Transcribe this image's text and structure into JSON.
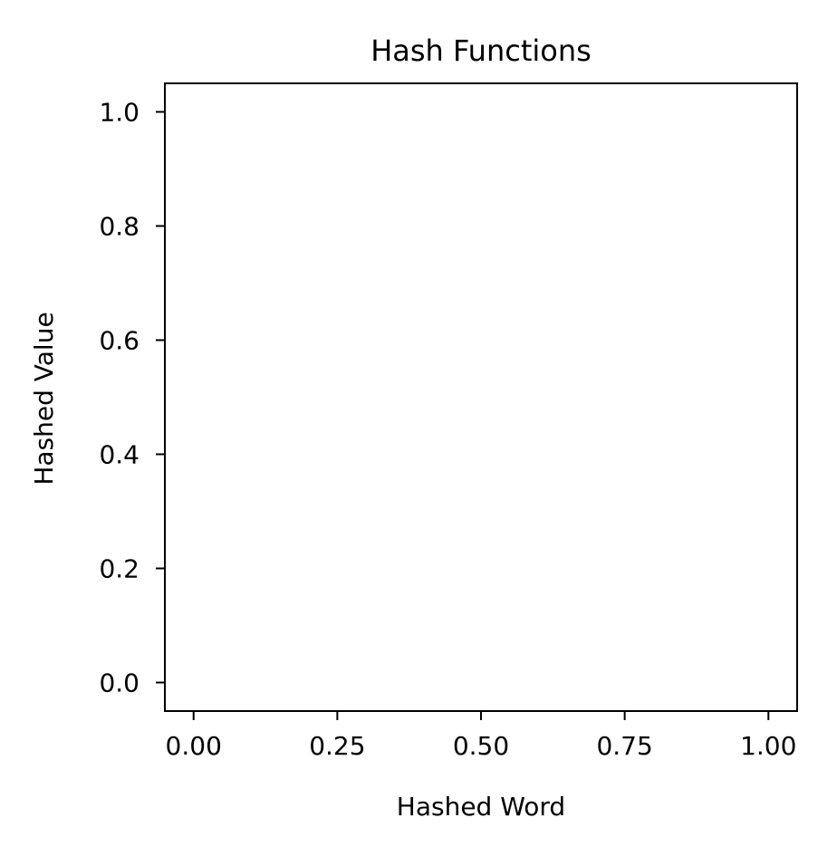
{
  "chart_data": {
    "type": "line",
    "title": "Hash Functions",
    "xlabel": "Hashed Word",
    "ylabel": "Hashed Value",
    "xlim": [
      -0.05,
      1.05
    ],
    "ylim": [
      -0.05,
      1.05
    ],
    "x_ticks": [
      0.0,
      0.25,
      0.5,
      0.75,
      1.0
    ],
    "x_tick_labels": [
      "0.00",
      "0.25",
      "0.50",
      "0.75",
      "1.00"
    ],
    "y_ticks": [
      0.0,
      0.2,
      0.4,
      0.6,
      0.8,
      1.0
    ],
    "y_tick_labels": [
      "0.0",
      "0.2",
      "0.4",
      "0.6",
      "0.8",
      "1.0"
    ],
    "series": [],
    "grid": false,
    "legend": "none"
  }
}
